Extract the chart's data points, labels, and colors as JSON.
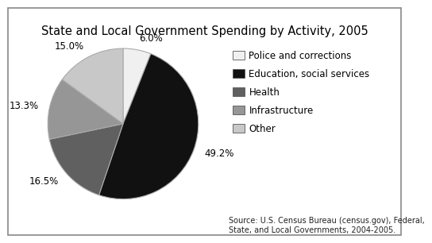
{
  "title": "State and Local Government Spending by Activity, 2005",
  "slices": [
    6.0,
    49.2,
    16.5,
    13.3,
    15.0
  ],
  "pct_labels": [
    "6.0%",
    "49.2%",
    "16.5%",
    "13.3%",
    "15.0%"
  ],
  "legend_labels": [
    "Police and corrections",
    "Education, social services",
    "Health",
    "Infrastructure",
    "Other"
  ],
  "colors": [
    "#f0f0f0",
    "#111111",
    "#606060",
    "#969696",
    "#c8c8c8"
  ],
  "edge_color": "#cccccc",
  "startangle": 90,
  "source_text": "Source: U.S. Census Bureau (census.gov), Federal,\nState, and Local Governments, 2004-2005.",
  "background_color": "#ffffff",
  "border_color": "#888888",
  "title_fontsize": 10.5,
  "label_fontsize": 8.5,
  "legend_fontsize": 8.5,
  "source_fontsize": 7.0
}
